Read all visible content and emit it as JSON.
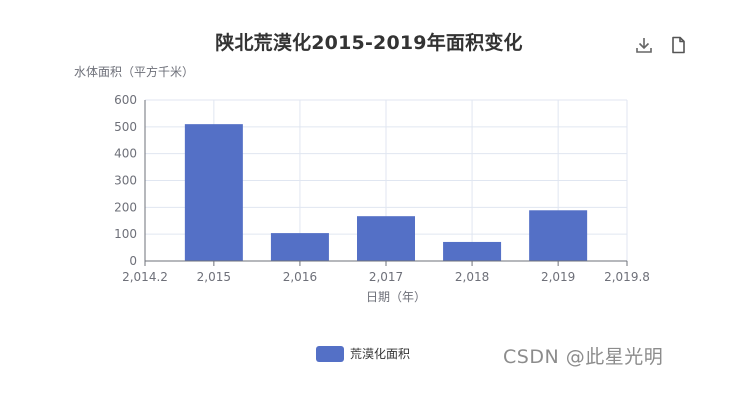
{
  "chart_data": {
    "type": "bar",
    "title": "陕北荒漠化2015-2019年面积变化",
    "ylabel": "水体面积（平方千米）",
    "xlabel": "日期（年）",
    "x": [
      2015,
      2016,
      2017,
      2018,
      2019
    ],
    "values": [
      510,
      104,
      167,
      71,
      189
    ],
    "series": [
      {
        "name": "荒漠化面积",
        "color": "#5470c6",
        "values": [
          510,
          104,
          167,
          71,
          189
        ]
      }
    ],
    "xlim": [
      2014.2,
      2019.8
    ],
    "ylim": [
      0,
      600
    ],
    "x_ticks": [
      2014.2,
      2015,
      2016,
      2017,
      2018,
      2019,
      2019.8
    ],
    "x_tick_labels": [
      "2,014.2",
      "2,015",
      "2,016",
      "2,017",
      "2,018",
      "2,019",
      "2,019.8"
    ],
    "y_ticks": [
      0,
      100,
      200,
      300,
      400,
      500,
      600
    ],
    "y_tick_labels": [
      "0",
      "100",
      "200",
      "300",
      "400",
      "500",
      "600"
    ],
    "grid": true,
    "legend_position": "bottom"
  },
  "toolbox": {
    "download_icon": "download-icon",
    "data_view_icon": "document-icon"
  },
  "watermark": "CSDN @此星光明",
  "colors": {
    "bar": "#5470c6",
    "axis": "#6e7079",
    "grid": "#e0e6f1",
    "title": "#333333"
  }
}
